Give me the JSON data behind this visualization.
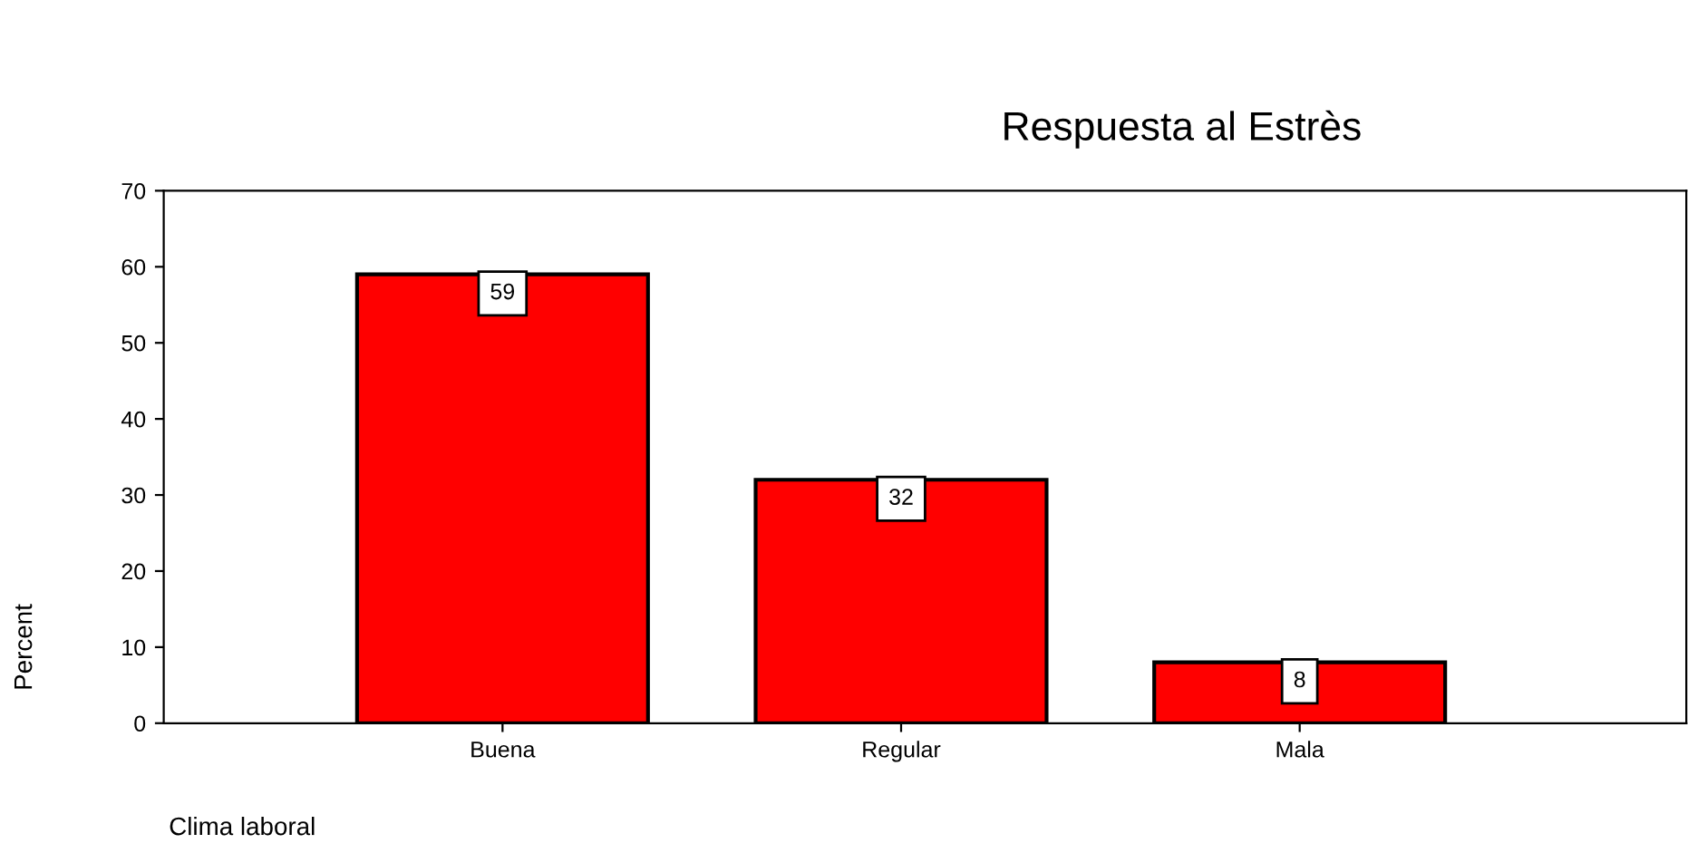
{
  "chart_data": {
    "type": "bar",
    "title": "Respuesta al Estrès",
    "xlabel": "Clima laboral",
    "ylabel": "Percent",
    "categories": [
      "Buena",
      "Regular",
      "Mala"
    ],
    "values": [
      59,
      32,
      8
    ],
    "color": "#ff0000",
    "ylim": [
      0,
      70
    ],
    "yticks": [
      0,
      10,
      20,
      30,
      40,
      50,
      60,
      70
    ],
    "data_labels": true,
    "grid": false,
    "legend": false
  }
}
